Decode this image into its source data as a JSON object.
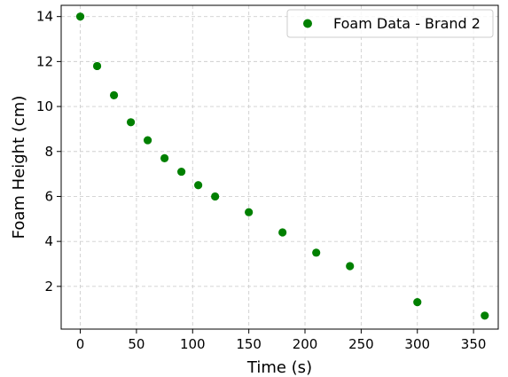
{
  "chart_data": {
    "type": "scatter",
    "title": "",
    "xlabel": "Time (s)",
    "ylabel": "Foam Height (cm)",
    "xlim": [
      -17,
      372
    ],
    "ylim": [
      0.1,
      14.5
    ],
    "xticks": [
      0,
      50,
      100,
      150,
      200,
      250,
      300,
      350
    ],
    "yticks": [
      2,
      4,
      6,
      8,
      10,
      12,
      14
    ],
    "grid": true,
    "legend_position": "top-right",
    "series": [
      {
        "name": "Foam Data - Brand 2",
        "color": "#008000",
        "x": [
          0,
          15,
          30,
          45,
          60,
          75,
          90,
          105,
          120,
          150,
          180,
          210,
          240,
          300,
          360
        ],
        "y": [
          14.0,
          11.8,
          10.5,
          9.3,
          8.5,
          7.7,
          7.1,
          6.5,
          6.0,
          5.3,
          4.4,
          3.5,
          2.9,
          1.3,
          0.7
        ]
      }
    ]
  }
}
